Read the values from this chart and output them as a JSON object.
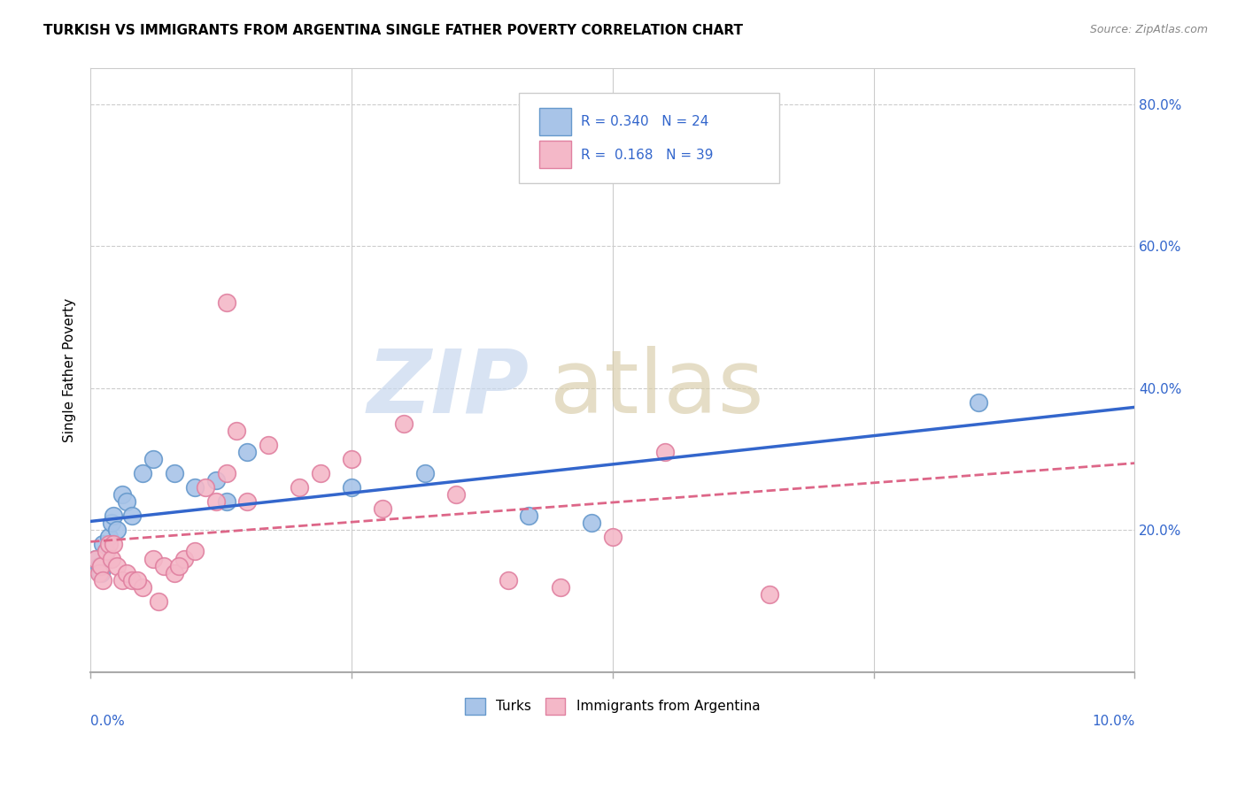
{
  "title": "TURKISH VS IMMIGRANTS FROM ARGENTINA SINGLE FATHER POVERTY CORRELATION CHART",
  "source": "Source: ZipAtlas.com",
  "ylabel": "Single Father Poverty",
  "x_min": 0.0,
  "x_max": 10.0,
  "y_min": 0.0,
  "y_max": 85.0,
  "grid_color": "#cccccc",
  "turks_color": "#a8c4e8",
  "turks_edge_color": "#6699cc",
  "argentina_color": "#f4b8c8",
  "argentina_edge_color": "#e080a0",
  "line_blue": "#3366cc",
  "line_pink": "#dd6688",
  "legend_R_blue": "0.340",
  "legend_N_blue": "24",
  "legend_R_pink": "0.168",
  "legend_N_pink": "39",
  "axis_label_color": "#3366cc",
  "background_color": "#ffffff",
  "title_fontsize": 11,
  "turks_x": [
    0.05,
    0.08,
    0.1,
    0.12,
    0.15,
    0.18,
    0.2,
    0.22,
    0.25,
    0.3,
    0.35,
    0.4,
    0.5,
    0.6,
    0.8,
    1.0,
    1.2,
    1.3,
    1.5,
    2.5,
    3.2,
    4.2,
    4.8,
    8.5
  ],
  "turks_y": [
    16,
    15,
    14,
    18,
    17,
    19,
    21,
    22,
    20,
    25,
    24,
    22,
    28,
    30,
    28,
    26,
    27,
    24,
    31,
    26,
    28,
    22,
    21,
    38
  ],
  "argentina_x": [
    0.05,
    0.08,
    0.1,
    0.12,
    0.15,
    0.18,
    0.2,
    0.22,
    0.25,
    0.3,
    0.35,
    0.4,
    0.5,
    0.6,
    0.7,
    0.8,
    0.9,
    1.0,
    1.1,
    1.2,
    1.3,
    1.4,
    1.5,
    1.7,
    2.0,
    2.2,
    2.5,
    2.8,
    3.0,
    3.5,
    4.0,
    4.5,
    5.0,
    5.5,
    6.5,
    1.3,
    0.45,
    0.65,
    0.85
  ],
  "argentina_y": [
    16,
    14,
    15,
    13,
    17,
    18,
    16,
    18,
    15,
    13,
    14,
    13,
    12,
    16,
    15,
    14,
    16,
    17,
    26,
    24,
    28,
    34,
    24,
    32,
    26,
    28,
    30,
    23,
    35,
    25,
    13,
    12,
    19,
    31,
    11,
    52,
    13,
    10,
    15
  ]
}
